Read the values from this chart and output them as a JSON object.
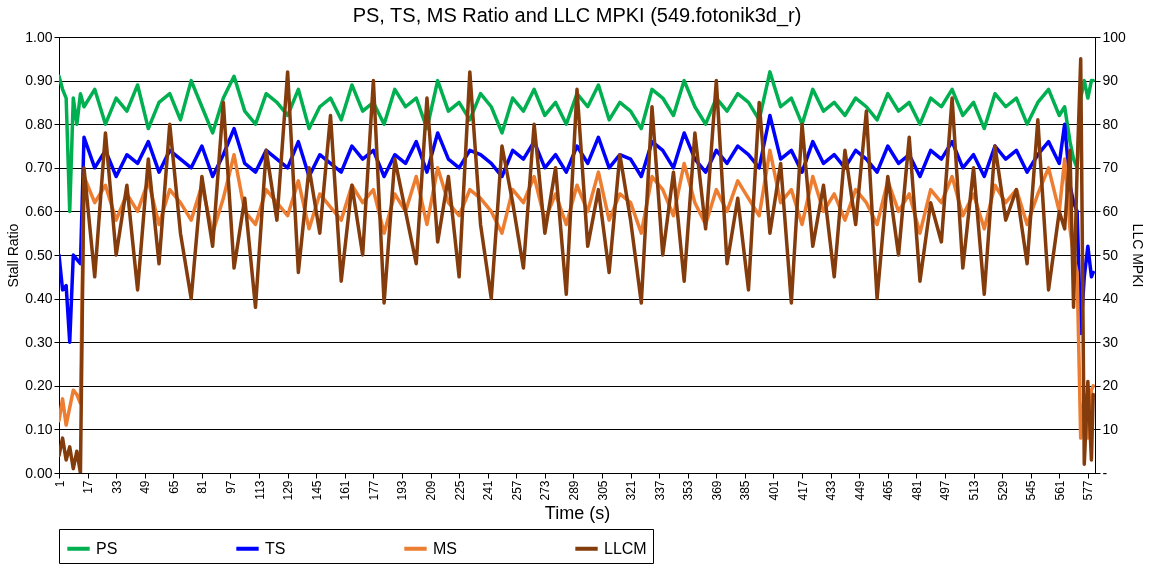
{
  "chart_data": {
    "type": "line",
    "title": "PS, TS, MS Ratio and LLC MPKI (549.fotonik3d_r)",
    "xlabel": "Time (s)",
    "ylabel": "Stall Ratio",
    "y2label": "LLC MPKI",
    "x": [
      1,
      3,
      5,
      7,
      9,
      11,
      13,
      15,
      21,
      27,
      33,
      39,
      45,
      51,
      57,
      63,
      69,
      75,
      81,
      87,
      93,
      99,
      105,
      111,
      117,
      123,
      129,
      135,
      141,
      147,
      153,
      159,
      165,
      171,
      177,
      183,
      189,
      195,
      201,
      207,
      213,
      219,
      225,
      231,
      237,
      243,
      249,
      255,
      261,
      267,
      273,
      279,
      285,
      291,
      297,
      303,
      309,
      315,
      321,
      327,
      333,
      339,
      345,
      351,
      357,
      363,
      369,
      375,
      381,
      387,
      393,
      399,
      405,
      411,
      417,
      423,
      429,
      435,
      441,
      447,
      453,
      459,
      465,
      471,
      477,
      483,
      489,
      495,
      501,
      507,
      513,
      519,
      525,
      531,
      537,
      543,
      549,
      555,
      561,
      564,
      567,
      569,
      571,
      573,
      575,
      577,
      579,
      580
    ],
    "xlim": [
      1,
      581
    ],
    "xticks": [
      1,
      17,
      33,
      49,
      65,
      81,
      97,
      113,
      129,
      145,
      161,
      177,
      193,
      209,
      225,
      241,
      257,
      273,
      289,
      305,
      321,
      337,
      353,
      369,
      385,
      401,
      417,
      433,
      449,
      465,
      481,
      497,
      513,
      529,
      545,
      561,
      577
    ],
    "ylim": [
      0,
      1
    ],
    "yticks": [
      {
        "value": 0,
        "label": "0.00"
      },
      {
        "value": 0.1,
        "label": "0.10"
      },
      {
        "value": 0.2,
        "label": "0.20"
      },
      {
        "value": 0.3,
        "label": "0.30"
      },
      {
        "value": 0.4,
        "label": "0.40"
      },
      {
        "value": 0.5,
        "label": "0.50"
      },
      {
        "value": 0.6,
        "label": "0.60"
      },
      {
        "value": 0.7,
        "label": "0.70"
      },
      {
        "value": 0.8,
        "label": "0.80"
      },
      {
        "value": 0.9,
        "label": "0.90"
      },
      {
        "value": 1,
        "label": "1.00"
      }
    ],
    "y2lim": [
      0,
      100
    ],
    "y2ticks": [
      {
        "value": 0,
        "label": "-"
      },
      10,
      20,
      30,
      40,
      50,
      60,
      70,
      80,
      90,
      100
    ],
    "grid": "y",
    "legend": "bottom",
    "line_style": "solid",
    "series": [
      {
        "name": "PS",
        "color": "#00b050",
        "values": [
          0.91,
          0.88,
          0.86,
          0.6,
          0.86,
          0.8,
          0.87,
          0.84,
          0.88,
          0.8,
          0.86,
          0.83,
          0.89,
          0.79,
          0.85,
          0.87,
          0.81,
          0.9,
          0.84,
          0.78,
          0.86,
          0.91,
          0.83,
          0.8,
          0.87,
          0.85,
          0.82,
          0.88,
          0.79,
          0.84,
          0.86,
          0.81,
          0.89,
          0.83,
          0.85,
          0.8,
          0.88,
          0.84,
          0.86,
          0.79,
          0.9,
          0.83,
          0.85,
          0.81,
          0.87,
          0.84,
          0.78,
          0.86,
          0.83,
          0.88,
          0.82,
          0.85,
          0.8,
          0.87,
          0.84,
          0.89,
          0.81,
          0.85,
          0.83,
          0.79,
          0.88,
          0.86,
          0.82,
          0.9,
          0.84,
          0.8,
          0.86,
          0.83,
          0.87,
          0.85,
          0.81,
          0.92,
          0.84,
          0.86,
          0.8,
          0.88,
          0.83,
          0.85,
          0.82,
          0.86,
          0.84,
          0.81,
          0.87,
          0.83,
          0.85,
          0.8,
          0.86,
          0.84,
          0.88,
          0.82,
          0.85,
          0.79,
          0.87,
          0.84,
          0.86,
          0.8,
          0.85,
          0.88,
          0.82,
          0.84,
          0.76,
          0.72,
          0.7,
          0.86,
          0.9,
          0.86,
          0.9,
          0.9
        ]
      },
      {
        "name": "TS",
        "color": "#0000ff",
        "values": [
          0.5,
          0.42,
          0.43,
          0.3,
          0.5,
          0.49,
          0.48,
          0.77,
          0.7,
          0.74,
          0.68,
          0.73,
          0.71,
          0.76,
          0.69,
          0.74,
          0.72,
          0.7,
          0.75,
          0.68,
          0.73,
          0.79,
          0.71,
          0.69,
          0.74,
          0.72,
          0.7,
          0.76,
          0.68,
          0.73,
          0.71,
          0.69,
          0.75,
          0.72,
          0.74,
          0.68,
          0.73,
          0.71,
          0.76,
          0.69,
          0.78,
          0.72,
          0.7,
          0.74,
          0.73,
          0.71,
          0.68,
          0.74,
          0.72,
          0.76,
          0.7,
          0.73,
          0.69,
          0.75,
          0.71,
          0.77,
          0.7,
          0.73,
          0.72,
          0.68,
          0.76,
          0.74,
          0.7,
          0.78,
          0.72,
          0.69,
          0.74,
          0.71,
          0.75,
          0.73,
          0.7,
          0.82,
          0.72,
          0.74,
          0.69,
          0.76,
          0.71,
          0.73,
          0.7,
          0.74,
          0.72,
          0.69,
          0.75,
          0.71,
          0.73,
          0.68,
          0.74,
          0.72,
          0.76,
          0.7,
          0.73,
          0.68,
          0.75,
          0.72,
          0.74,
          0.69,
          0.73,
          0.76,
          0.71,
          0.8,
          0.66,
          0.62,
          0.6,
          0.32,
          0.45,
          0.52,
          0.45,
          0.46
        ]
      },
      {
        "name": "MS",
        "color": "#ed7d31",
        "values": [
          0.12,
          0.17,
          0.11,
          0.15,
          0.19,
          0.18,
          0.16,
          0.68,
          0.62,
          0.66,
          0.58,
          0.64,
          0.6,
          0.67,
          0.57,
          0.65,
          0.62,
          0.58,
          0.66,
          0.55,
          0.63,
          0.73,
          0.6,
          0.57,
          0.65,
          0.62,
          0.59,
          0.67,
          0.56,
          0.64,
          0.61,
          0.58,
          0.66,
          0.62,
          0.65,
          0.55,
          0.64,
          0.6,
          0.68,
          0.57,
          0.7,
          0.62,
          0.59,
          0.65,
          0.63,
          0.6,
          0.55,
          0.65,
          0.62,
          0.68,
          0.58,
          0.64,
          0.57,
          0.66,
          0.6,
          0.69,
          0.58,
          0.64,
          0.62,
          0.55,
          0.68,
          0.65,
          0.59,
          0.71,
          0.62,
          0.57,
          0.65,
          0.6,
          0.67,
          0.63,
          0.59,
          0.74,
          0.62,
          0.65,
          0.57,
          0.68,
          0.6,
          0.64,
          0.58,
          0.65,
          0.62,
          0.57,
          0.67,
          0.6,
          0.64,
          0.55,
          0.65,
          0.62,
          0.68,
          0.59,
          0.64,
          0.56,
          0.66,
          0.62,
          0.65,
          0.57,
          0.64,
          0.7,
          0.6,
          0.72,
          0.56,
          0.5,
          0.46,
          0.08,
          0.18,
          0.08,
          0.19,
          0.2
        ]
      },
      {
        "name": "LLCM",
        "color": "#843c0c",
        "axis": "y2",
        "values": [
          4,
          8,
          3,
          6,
          1,
          5,
          0,
          70,
          45,
          78,
          50,
          66,
          42,
          72,
          48,
          80,
          55,
          40,
          68,
          52,
          85,
          47,
          63,
          38,
          74,
          58,
          92,
          46,
          70,
          55,
          82,
          44,
          66,
          50,
          90,
          39,
          72,
          60,
          48,
          86,
          53,
          68,
          45,
          92,
          57,
          40,
          75,
          62,
          47,
          80,
          55,
          70,
          41,
          88,
          52,
          65,
          46,
          73,
          58,
          39,
          84,
          50,
          69,
          44,
          78,
          56,
          90,
          48,
          63,
          42,
          85,
          55,
          71,
          39,
          80,
          52,
          66,
          45,
          74,
          57,
          83,
          40,
          68,
          50,
          77,
          44,
          62,
          53,
          86,
          47,
          70,
          41,
          75,
          58,
          65,
          48,
          81,
          42,
          60,
          56,
          74,
          38,
          70,
          95,
          2,
          21,
          3,
          18
        ]
      }
    ]
  }
}
